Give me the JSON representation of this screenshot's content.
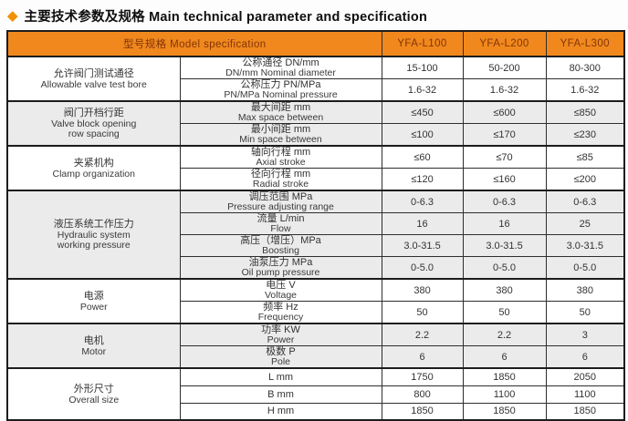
{
  "colors": {
    "accent_orange": "#F1881E",
    "header_text": "#823505",
    "shaded_row": "#EBEBEB",
    "border": "#1c1c1c",
    "diamond_icon": "#F29200"
  },
  "title": {
    "text": "主要技术参数及规格 Main technical parameter and specification",
    "icon": "diamond-icon"
  },
  "table": {
    "header": {
      "model_label": "型号规格  Model specification",
      "models": [
        "YFA-L100",
        "YFA-L200",
        "YFA-L300"
      ]
    },
    "groups": [
      {
        "label_zh": "允许阀门测试通径",
        "label_en": "Allowable valve test bore",
        "shaded": false,
        "rows": [
          {
            "param_zh": "公称通径 DN/mm",
            "param_en": "DN/mm Nominal diameter",
            "values": [
              "15-100",
              "50-200",
              "80-300"
            ]
          },
          {
            "param_zh": "公称压力 PN/MPa",
            "param_en": "PN/MPa Nominal pressure",
            "values": [
              "1.6-32",
              "1.6-32",
              "1.6-32"
            ]
          }
        ]
      },
      {
        "label_zh": "阀门开档行距",
        "label_en": "Valve block opening\nrow spacing",
        "shaded": true,
        "rows": [
          {
            "param_zh": "最大间距 mm",
            "param_en": "Max space between",
            "values": [
              "≤450",
              "≤600",
              "≤850"
            ]
          },
          {
            "param_zh": "最小间距 mm",
            "param_en": "Min space between",
            "values": [
              "≤100",
              "≤170",
              "≤230"
            ]
          }
        ]
      },
      {
        "label_zh": "夹紧机构",
        "label_en": "Clamp organization",
        "shaded": false,
        "rows": [
          {
            "param_zh": "轴向行程 mm",
            "param_en": "Axial stroke",
            "values": [
              "≤60",
              "≤70",
              "≤85"
            ]
          },
          {
            "param_zh": "径向行程 mm",
            "param_en": "Radial stroke",
            "values": [
              "≤120",
              "≤160",
              "≤200"
            ]
          }
        ]
      },
      {
        "label_zh": "液压系统工作压力",
        "label_en": "Hydraulic system\nworking pressure",
        "shaded": true,
        "rows": [
          {
            "param_zh": "调压范围 MPa",
            "param_en": "Pressure adjusting range",
            "values": [
              "0-6.3",
              "0-6.3",
              "0-6.3"
            ]
          },
          {
            "param_zh": "流量 L/min",
            "param_en": "Flow",
            "values": [
              "16",
              "16",
              "25"
            ]
          },
          {
            "param_zh": "高压（增压）MPa",
            "param_en": "Boosting",
            "values": [
              "3.0-31.5",
              "3.0-31.5",
              "3.0-31.5"
            ]
          },
          {
            "param_zh": "油泵压力 MPa",
            "param_en": "Oil pump pressure",
            "values": [
              "0-5.0",
              "0-5.0",
              "0-5.0"
            ]
          }
        ]
      },
      {
        "label_zh": "电源",
        "label_en": "Power",
        "shaded": false,
        "rows": [
          {
            "param_zh": "电压 V",
            "param_en": "Voltage",
            "values": [
              "380",
              "380",
              "380"
            ]
          },
          {
            "param_zh": "频率 Hz",
            "param_en": "Frequency",
            "values": [
              "50",
              "50",
              "50"
            ]
          }
        ]
      },
      {
        "label_zh": "电机",
        "label_en": "Motor",
        "shaded": true,
        "rows": [
          {
            "param_zh": "功率 KW",
            "param_en": "Power",
            "values": [
              "2.2",
              "2.2",
              "3"
            ]
          },
          {
            "param_zh": "极数 P",
            "param_en": "Pole",
            "values": [
              "6",
              "6",
              "6"
            ]
          }
        ]
      },
      {
        "label_zh": "外形尺寸",
        "label_en": "Overall size",
        "shaded": false,
        "compact": true,
        "rows": [
          {
            "param_zh": "L mm",
            "param_en": "",
            "values": [
              "1750",
              "1850",
              "2050"
            ]
          },
          {
            "param_zh": "B mm",
            "param_en": "",
            "values": [
              "800",
              "1100",
              "1100"
            ]
          },
          {
            "param_zh": "H mm",
            "param_en": "",
            "values": [
              "1850",
              "1850",
              "1850"
            ]
          }
        ]
      }
    ]
  }
}
